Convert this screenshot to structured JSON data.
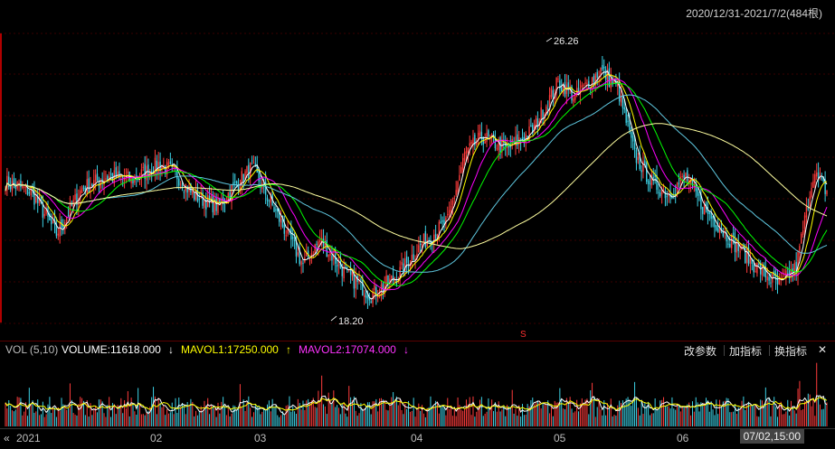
{
  "range_label": "2020/12/31-2021/7/2(484根)",
  "volume_header": {
    "vol_label": "VOL (5,10)",
    "volume": "VOLUME:11618.000",
    "volume_arrow": "↓",
    "mavol1": "MAVOL1:17250.000",
    "mavol1_arrow": "↑",
    "mavol2": "MAVOL2:17074.000",
    "mavol2_arrow": "↓"
  },
  "toolbar": {
    "params_label": "改参数",
    "add_indicator_label": "加指标",
    "switch_indicator_label": "换指标",
    "close_label": "✕"
  },
  "annotations": {
    "high_label": "26.26",
    "low_label": "18.20",
    "marker_s": "S"
  },
  "x_axis": {
    "start_label": "2021",
    "months": [
      "02",
      "03",
      "04",
      "05",
      "06"
    ],
    "cursor_time": "07/02,15:00"
  },
  "colors": {
    "up": "#ff3c3c",
    "down": "#3cd2e6",
    "ma1": "#ffffff",
    "ma2": "#ffff00",
    "ma3": "#ff00ff",
    "ma4": "#00ff00",
    "ma5": "#5fc8e0",
    "ma6": "#ffffa0"
  },
  "chart_data": {
    "type": "candlestick",
    "bars": 484,
    "price_range": [
      17.6,
      27.2
    ],
    "high": 26.26,
    "low": 18.2,
    "price_anchors": [
      [
        0,
        22.3
      ],
      [
        15,
        22.0
      ],
      [
        30,
        20.6
      ],
      [
        45,
        22.1
      ],
      [
        60,
        22.5
      ],
      [
        75,
        22.4
      ],
      [
        90,
        22.9
      ],
      [
        100,
        22.6
      ],
      [
        110,
        21.9
      ],
      [
        125,
        21.5
      ],
      [
        135,
        22.2
      ],
      [
        145,
        22.8
      ],
      [
        160,
        21.2
      ],
      [
        175,
        19.6
      ],
      [
        185,
        20.4
      ],
      [
        200,
        19.3
      ],
      [
        215,
        18.6
      ],
      [
        230,
        19.2
      ],
      [
        245,
        20.3
      ],
      [
        260,
        21.0
      ],
      [
        270,
        23.2
      ],
      [
        280,
        23.8
      ],
      [
        295,
        23.4
      ],
      [
        310,
        24.0
      ],
      [
        325,
        25.6
      ],
      [
        335,
        25.1
      ],
      [
        350,
        26.0
      ],
      [
        360,
        25.4
      ],
      [
        370,
        23.2
      ],
      [
        380,
        22.3
      ],
      [
        390,
        21.9
      ],
      [
        400,
        22.5
      ],
      [
        410,
        21.5
      ],
      [
        425,
        20.5
      ],
      [
        440,
        19.6
      ],
      [
        455,
        18.9
      ],
      [
        465,
        19.5
      ],
      [
        475,
        22.6
      ],
      [
        483,
        22.0
      ]
    ],
    "volume_range": [
      0,
      45000
    ]
  }
}
